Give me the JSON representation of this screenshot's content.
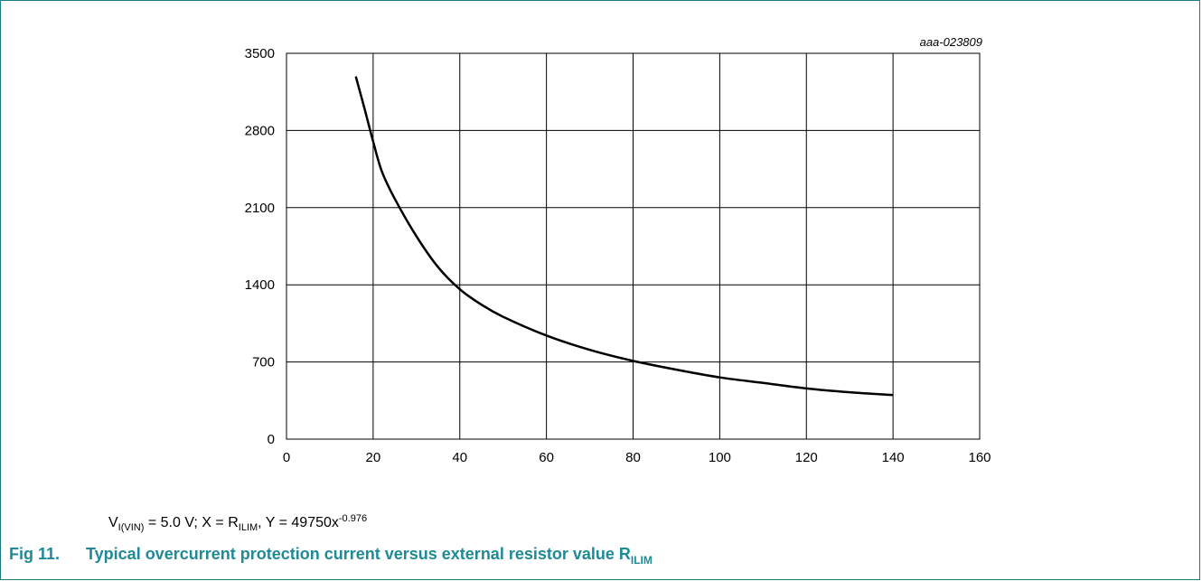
{
  "figure_id": "aaa-023809",
  "note": {
    "v_sym": "V",
    "v_sub": "I(VIN)",
    "v_rest": " = 5.0 V; X = R",
    "r_sub": "ILIM",
    "y_eq": ", Y = 49750x",
    "exp": "-0.976"
  },
  "caption": {
    "number": "Fig 11.",
    "text": "Typical overcurrent protection current versus external resistor value R",
    "sub": "ILIM"
  },
  "colors": {
    "caption": "#1f8a96",
    "frame": "#1f7a86",
    "curve": "#000000",
    "grid": "#000000"
  },
  "chart_data": {
    "type": "line",
    "title": "",
    "xlabel": "",
    "ylabel": "",
    "xlim": [
      0,
      160
    ],
    "ylim": [
      0,
      3500
    ],
    "x_ticks": [
      "0",
      "20",
      "40",
      "60",
      "80",
      "100",
      "120",
      "140",
      "160"
    ],
    "y_ticks": [
      "0",
      "700",
      "1400",
      "2100",
      "2800",
      "3500"
    ],
    "grid": true,
    "series": [
      {
        "x": [
          16,
          18,
          20,
          22,
          25,
          30,
          35,
          40,
          45,
          50,
          60,
          70,
          80,
          90,
          100,
          110,
          120,
          130,
          140
        ],
        "y": [
          3290,
          3000,
          2700,
          2430,
          2180,
          1840,
          1560,
          1360,
          1220,
          1110,
          940,
          810,
          710,
          630,
          560,
          510,
          460,
          425,
          400
        ]
      }
    ]
  }
}
